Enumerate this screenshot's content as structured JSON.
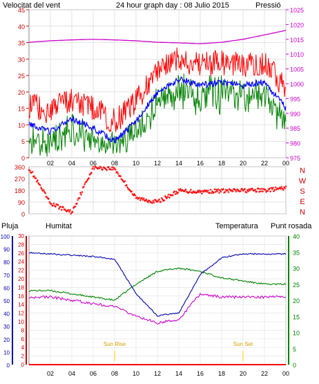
{
  "header": {
    "left_label": "Velocitat del vent",
    "title": "24 hour graph day : 08 Julio 2015",
    "right_label": "Pressió"
  },
  "colors": {
    "wind_speed": "#ff0000",
    "wind_avg": "#0000ff",
    "wind_low": "#008000",
    "pressure": "#cc00cc",
    "direction": "#ff0000",
    "rain": "#ff0000",
    "humidity": "#0000aa",
    "temperature": "#008000",
    "dewpoint": "#cc00cc",
    "sun_marker": "#ffcc00"
  },
  "x_tick_labels": [
    "02",
    "04",
    "06",
    "08",
    "10",
    "12",
    "14",
    "16",
    "18",
    "20",
    "22",
    "00"
  ],
  "panel_wind": {
    "left_ticks": [
      "0",
      "5",
      "10",
      "15",
      "20",
      "25",
      "30",
      "35",
      "40",
      "45"
    ],
    "right_ticks": [
      "975",
      "980",
      "985",
      "990",
      "995",
      "1000",
      "1005",
      "1010",
      "1015",
      "1020",
      "1025"
    ]
  },
  "panel_direction": {
    "left_ticks": [
      "0",
      "90",
      "180",
      "270",
      "360"
    ],
    "right_letters": [
      "N",
      "W",
      "S",
      "E",
      "N"
    ]
  },
  "panel_weather": {
    "labels": {
      "rain": "Pluja",
      "humidity": "Humitat",
      "temperature": "Temperatura",
      "dewpoint": "Punt rosada"
    },
    "rain_ticks": [
      "0",
      "2",
      "4",
      "6",
      "8",
      "10",
      "12",
      "14",
      "16",
      "18",
      "20",
      "22",
      "24",
      "26",
      "28",
      "30"
    ],
    "humidity_ticks": [
      "0",
      "10",
      "20",
      "30",
      "40",
      "50",
      "60",
      "70",
      "80",
      "90",
      "100"
    ],
    "temp_ticks": [
      "0",
      "5",
      "10",
      "15",
      "20",
      "25",
      "30",
      "35",
      "40"
    ],
    "sun_rise_label": "Sun Rise",
    "sun_set_label": "Sun Set"
  },
  "chart_data": [
    {
      "type": "line",
      "x": [
        "00:00",
        "02:00",
        "04:00",
        "06:00",
        "08:00",
        "10:00",
        "12:00",
        "14:00",
        "16:00",
        "18:00",
        "20:00",
        "22:00",
        "24:00"
      ],
      "series": [
        {
          "name": "Velocitat del vent",
          "values": [
            10,
            8,
            12,
            9,
            5,
            11,
            20,
            24,
            22,
            23,
            22,
            23,
            15
          ]
        },
        {
          "name": "Pressió",
          "values": [
            1014,
            1014.5,
            1014.8,
            1015,
            1014.8,
            1014.5,
            1014,
            1013.8,
            1013.5,
            1014,
            1015,
            1016.5,
            1018
          ]
        }
      ],
      "ylim_left": [
        0,
        45
      ],
      "ylim_right": [
        975,
        1025
      ]
    },
    {
      "type": "scatter",
      "x": [
        "00:00",
        "02:00",
        "04:00",
        "06:00",
        "08:00",
        "10:00",
        "12:00",
        "14:00",
        "16:00",
        "18:00",
        "20:00",
        "22:00",
        "24:00"
      ],
      "series": [
        {
          "values": [
            350,
            80,
            10,
            355,
            345,
            120,
            90,
            175,
            170,
            175,
            178,
            180,
            195
          ]
        }
      ],
      "ylim": [
        0,
        360
      ]
    },
    {
      "type": "line",
      "x": [
        "00:00",
        "02:00",
        "04:00",
        "06:00",
        "08:00",
        "10:00",
        "12:00",
        "14:00",
        "16:00",
        "18:00",
        "20:00",
        "22:00",
        "24:00"
      ],
      "series": [
        {
          "name": "Pluja",
          "values": [
            0,
            0,
            0,
            0,
            0,
            0,
            0,
            0,
            0,
            0,
            0,
            0,
            0
          ]
        },
        {
          "name": "Humitat",
          "values": [
            87,
            86,
            85,
            84,
            82,
            55,
            38,
            40,
            70,
            83,
            86,
            86,
            86
          ]
        },
        {
          "name": "Temperatura",
          "values": [
            23,
            23,
            22,
            21,
            20,
            25,
            29,
            30,
            29,
            27,
            26,
            25,
            25
          ]
        },
        {
          "name": "Punt rosada",
          "values": [
            21,
            21,
            20,
            19,
            18,
            15,
            13,
            14,
            22,
            21,
            21,
            21,
            21
          ]
        }
      ],
      "ylim_rain": [
        0,
        30
      ],
      "ylim_humidity": [
        0,
        100
      ],
      "ylim_temperature": [
        0,
        40
      ]
    }
  ]
}
